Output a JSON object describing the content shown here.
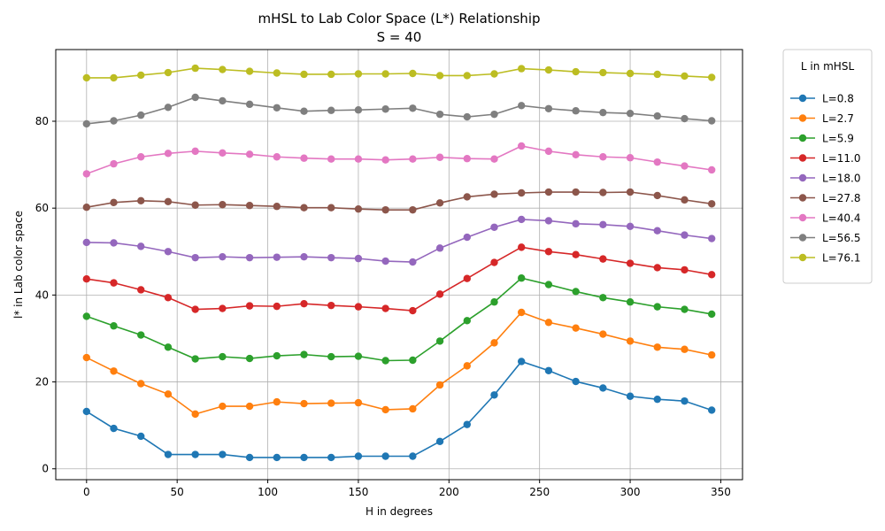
{
  "chart_data": {
    "type": "line",
    "title": "mHSL to Lab Color Space (L*) Relationship",
    "subtitle": "S = 40",
    "xlabel": "H in degrees",
    "ylabel": "l* in Lab color space",
    "xlim": [
      -17,
      362
    ],
    "ylim": [
      -2.5,
      96.5
    ],
    "xticks": [
      0,
      50,
      100,
      150,
      200,
      250,
      300,
      350
    ],
    "yticks": [
      0,
      20,
      40,
      60,
      80
    ],
    "grid": true,
    "legend": {
      "title": "L in mHSL",
      "placement": "outside-right"
    },
    "x": [
      0,
      15,
      30,
      45,
      60,
      75,
      90,
      105,
      120,
      135,
      150,
      165,
      180,
      195,
      210,
      225,
      240,
      255,
      270,
      285,
      300,
      315,
      330,
      345
    ],
    "series": [
      {
        "name": "L=0.8",
        "color": "#1f77b4",
        "values": [
          13.2,
          9.3,
          7.5,
          3.3,
          3.3,
          3.3,
          2.6,
          2.6,
          2.6,
          2.6,
          2.9,
          2.9,
          2.9,
          6.3,
          10.2,
          17.0,
          24.7,
          22.6,
          20.1,
          18.6,
          16.7,
          16.0,
          15.6,
          13.5
        ]
      },
      {
        "name": "L=2.7",
        "color": "#ff7f0e",
        "values": [
          25.6,
          22.5,
          19.6,
          17.2,
          12.6,
          14.4,
          14.4,
          15.4,
          15.0,
          15.1,
          15.2,
          13.6,
          13.8,
          19.3,
          23.7,
          29.0,
          36.0,
          33.7,
          32.4,
          31.0,
          29.4,
          28.0,
          27.5,
          26.2
        ]
      },
      {
        "name": "L=5.9",
        "color": "#2ca02c",
        "values": [
          35.1,
          32.9,
          30.8,
          28.0,
          25.3,
          25.8,
          25.4,
          26.0,
          26.3,
          25.8,
          25.9,
          24.9,
          25.0,
          29.4,
          34.1,
          38.4,
          43.9,
          42.4,
          40.8,
          39.4,
          38.4,
          37.3,
          36.7,
          35.6
        ]
      },
      {
        "name": "L=11.0",
        "color": "#d62728",
        "values": [
          43.7,
          42.8,
          41.2,
          39.4,
          36.7,
          36.9,
          37.5,
          37.4,
          38.0,
          37.6,
          37.3,
          36.9,
          36.4,
          40.2,
          43.8,
          47.5,
          51.0,
          50.0,
          49.3,
          48.3,
          47.3,
          46.3,
          45.8,
          44.7
        ]
      },
      {
        "name": "L=18.0",
        "color": "#9467bd",
        "values": [
          52.1,
          52.0,
          51.2,
          50.0,
          48.6,
          48.8,
          48.6,
          48.7,
          48.8,
          48.6,
          48.4,
          47.8,
          47.6,
          50.8,
          53.3,
          55.6,
          57.4,
          57.1,
          56.4,
          56.2,
          55.8,
          54.8,
          53.8,
          53.0
        ]
      },
      {
        "name": "L=27.8",
        "color": "#8c564b",
        "values": [
          60.2,
          61.3,
          61.7,
          61.5,
          60.7,
          60.8,
          60.6,
          60.4,
          60.1,
          60.1,
          59.8,
          59.6,
          59.6,
          61.2,
          62.6,
          63.2,
          63.5,
          63.7,
          63.7,
          63.6,
          63.7,
          62.9,
          61.9,
          61.0
        ]
      },
      {
        "name": "L=40.4",
        "color": "#e377c2",
        "values": [
          67.9,
          70.2,
          71.8,
          72.6,
          73.1,
          72.7,
          72.4,
          71.8,
          71.5,
          71.3,
          71.3,
          71.1,
          71.3,
          71.7,
          71.4,
          71.3,
          74.3,
          73.1,
          72.3,
          71.8,
          71.6,
          70.6,
          69.7,
          68.8
        ]
      },
      {
        "name": "L=56.5",
        "color": "#7f7f7f",
        "values": [
          79.4,
          80.1,
          81.4,
          83.2,
          85.5,
          84.7,
          83.9,
          83.1,
          82.3,
          82.5,
          82.6,
          82.8,
          83.0,
          81.6,
          81.0,
          81.6,
          83.6,
          82.9,
          82.4,
          82.0,
          81.8,
          81.2,
          80.6,
          80.1
        ]
      },
      {
        "name": "L=76.1",
        "color": "#bcbd22",
        "values": [
          90.0,
          90.0,
          90.6,
          91.2,
          92.2,
          91.9,
          91.5,
          91.1,
          90.8,
          90.8,
          90.9,
          90.9,
          91.0,
          90.5,
          90.5,
          90.9,
          92.1,
          91.8,
          91.4,
          91.2,
          91.0,
          90.8,
          90.4,
          90.1
        ]
      }
    ]
  }
}
